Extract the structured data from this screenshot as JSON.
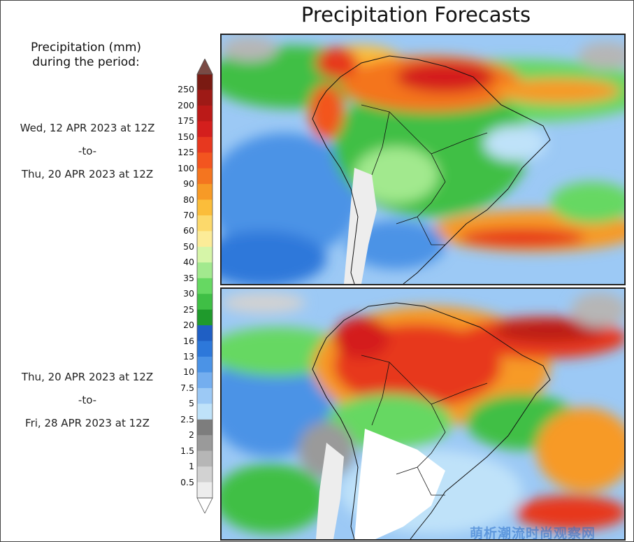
{
  "title": "Precipitation Forecasts",
  "legend": {
    "title_line1": "Precipitation (mm)",
    "title_line2": "during the period:",
    "levels": [
      "250",
      "200",
      "175",
      "150",
      "125",
      "100",
      "90",
      "80",
      "70",
      "60",
      "50",
      "40",
      "35",
      "30",
      "25",
      "20",
      "16",
      "13",
      "10",
      "7.5",
      "5",
      "2.5",
      "2",
      "1.5",
      "1",
      "0.5"
    ],
    "colors": [
      "#7a1a12",
      "#9e1a16",
      "#bb1a18",
      "#d41f1d",
      "#e7381f",
      "#f3551f",
      "#f4751f",
      "#f79a26",
      "#fbbd3a",
      "#fcd96b",
      "#fcec98",
      "#d6f5a8",
      "#a2e98e",
      "#66d862",
      "#3fbf45",
      "#1f9a2c",
      "#1f5fc4",
      "#2d78da",
      "#4b93e6",
      "#74aeef",
      "#9cc9f5",
      "#bfe2f9",
      "#7d7d7d",
      "#9a9a9a",
      "#b6b6b6",
      "#d2d2d2",
      "#ededed"
    ],
    "top_arrow_color": "#7a4a44",
    "bottom_arrow_color": "#ffffff"
  },
  "panels": [
    {
      "from": "Wed, 12 APR 2023 at 12Z",
      "to_word": "-to-",
      "until": "Thu, 20 APR 2023 at 12Z"
    },
    {
      "from": "Thu, 20 APR 2023 at 12Z",
      "to_word": "-to-",
      "until": "Fri, 28 APR 2023 at 12Z"
    }
  ],
  "watermark": "萌析潮流时尚观察网"
}
